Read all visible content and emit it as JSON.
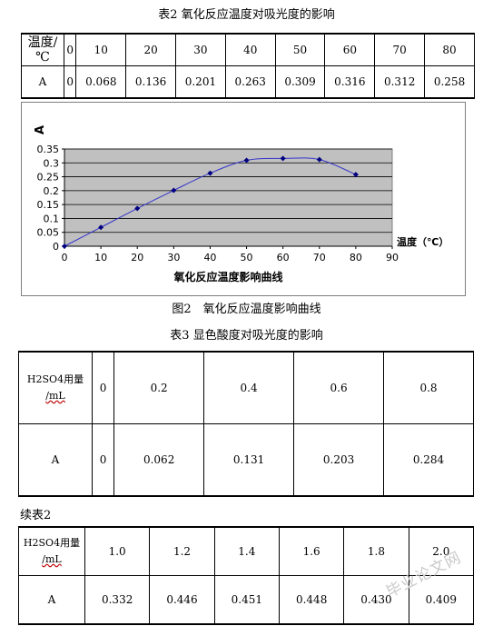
{
  "table2": {
    "caption": "表2 氧化反应温度对吸光度的影响",
    "row_header_1": "温度/℃",
    "row_header_2": "A",
    "temps": [
      "0",
      "10",
      "20",
      "30",
      "40",
      "50",
      "60",
      "70",
      "80"
    ],
    "absorbance": [
      "0",
      "0.068",
      "0.136",
      "0.201",
      "0.263",
      "0.309",
      "0.316",
      "0.312",
      "0.258"
    ]
  },
  "chart_data": {
    "type": "line",
    "y_axis_letter": "A",
    "xlabel": "温度（℃）",
    "title": "氧化反应温度影响曲线",
    "x": [
      0,
      10,
      20,
      30,
      40,
      50,
      60,
      70,
      80
    ],
    "y": [
      0,
      0.068,
      0.136,
      0.201,
      0.263,
      0.309,
      0.316,
      0.312,
      0.258
    ],
    "xlim": [
      0,
      90
    ],
    "ylim": [
      0,
      0.35
    ],
    "xticks": [
      "0",
      "10",
      "20",
      "30",
      "40",
      "50",
      "60",
      "70",
      "80",
      "90"
    ],
    "yticks": [
      "0",
      "0.05",
      "0.1",
      "0.15",
      "0.2",
      "0.25",
      "0.3",
      "0.35"
    ],
    "grid": true,
    "colors": {
      "plot_bg": "#c0c0c0",
      "line": "#3333cc",
      "marker": "#000080"
    }
  },
  "figure2": {
    "caption": "图2　氧化反应温度影响曲线"
  },
  "table3": {
    "caption": "表3 显色酸度对吸光度的影响",
    "label_main": "H2SO4用量",
    "label_unit": "/mL",
    "row_header_2": "A",
    "amounts": [
      "0",
      "0.2",
      "0.4",
      "0.6",
      "0.8"
    ],
    "absorbance": [
      "0",
      "0.062",
      "0.131",
      "0.203",
      "0.284"
    ]
  },
  "table3_cont": {
    "caption": "续表2",
    "label_main": "H2SO4用量",
    "label_unit": "/mL",
    "row_header_2": "A",
    "amounts": [
      "1.0",
      "1.2",
      "1.4",
      "1.6",
      "1.8",
      "2.0"
    ],
    "absorbance": [
      "0.332",
      "0.446",
      "0.451",
      "0.448",
      "0.430",
      "0.409"
    ]
  },
  "watermark": {
    "text": "毕业论文网"
  }
}
